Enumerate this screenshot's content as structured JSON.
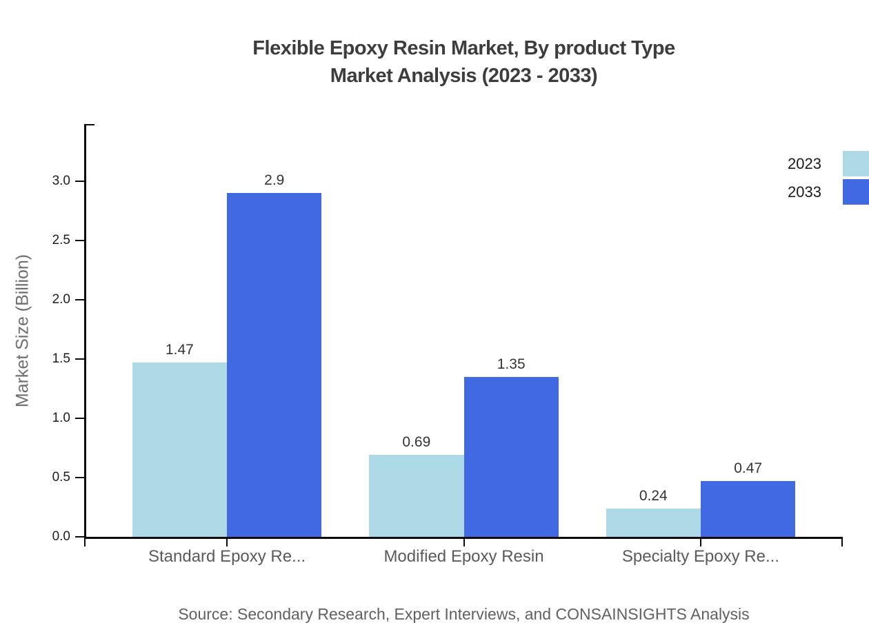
{
  "title": {
    "line1": "Flexible Epoxy Resin Market, By product Type",
    "line2": "Market Analysis (2023 - 2033)"
  },
  "source_note": "Source: Secondary Research, Expert Interviews, and CONSAINSIGHTS Analysis",
  "colors": {
    "background": "#ffffff",
    "axis": "#0a0a0a",
    "title_text": "#3d3d3d",
    "category_text": "#5a5a5a",
    "source_text": "#606060",
    "ylabel_text": "#6e6e6e",
    "value_text": "#333333",
    "tick_text": "#1c1c1c",
    "series_2023": "#ADD8E6",
    "series_2033": "#4169E1"
  },
  "chart_data": {
    "type": "bar",
    "title": "Flexible Epoxy Resin Market, By product Type Market Analysis (2023 - 2033)",
    "categories": [
      "Standard Epoxy Re...",
      "Modified Epoxy Resin",
      "Specialty Epoxy Re..."
    ],
    "series": [
      {
        "name": "2023",
        "color": "#ADD8E6",
        "values": [
          1.47,
          0.69,
          0.24
        ],
        "labels": [
          "1.47",
          "0.69",
          "0.24"
        ]
      },
      {
        "name": "2033",
        "color": "#4169E1",
        "values": [
          2.9,
          1.35,
          0.47
        ],
        "labels": [
          "2.9",
          "1.35",
          "0.47"
        ]
      }
    ],
    "xlabel": "",
    "ylabel": "Market Size (Billion)",
    "yticks": [
      0.0,
      0.5,
      1.0,
      1.5,
      2.0,
      2.5,
      3.0
    ],
    "ytick_labels": [
      "0.0",
      "0.5",
      "1.0",
      "1.5",
      "2.0",
      "2.5",
      "3.0"
    ],
    "ylim": [
      0,
      3.48
    ],
    "grid": false,
    "legend_position": "top-right"
  }
}
